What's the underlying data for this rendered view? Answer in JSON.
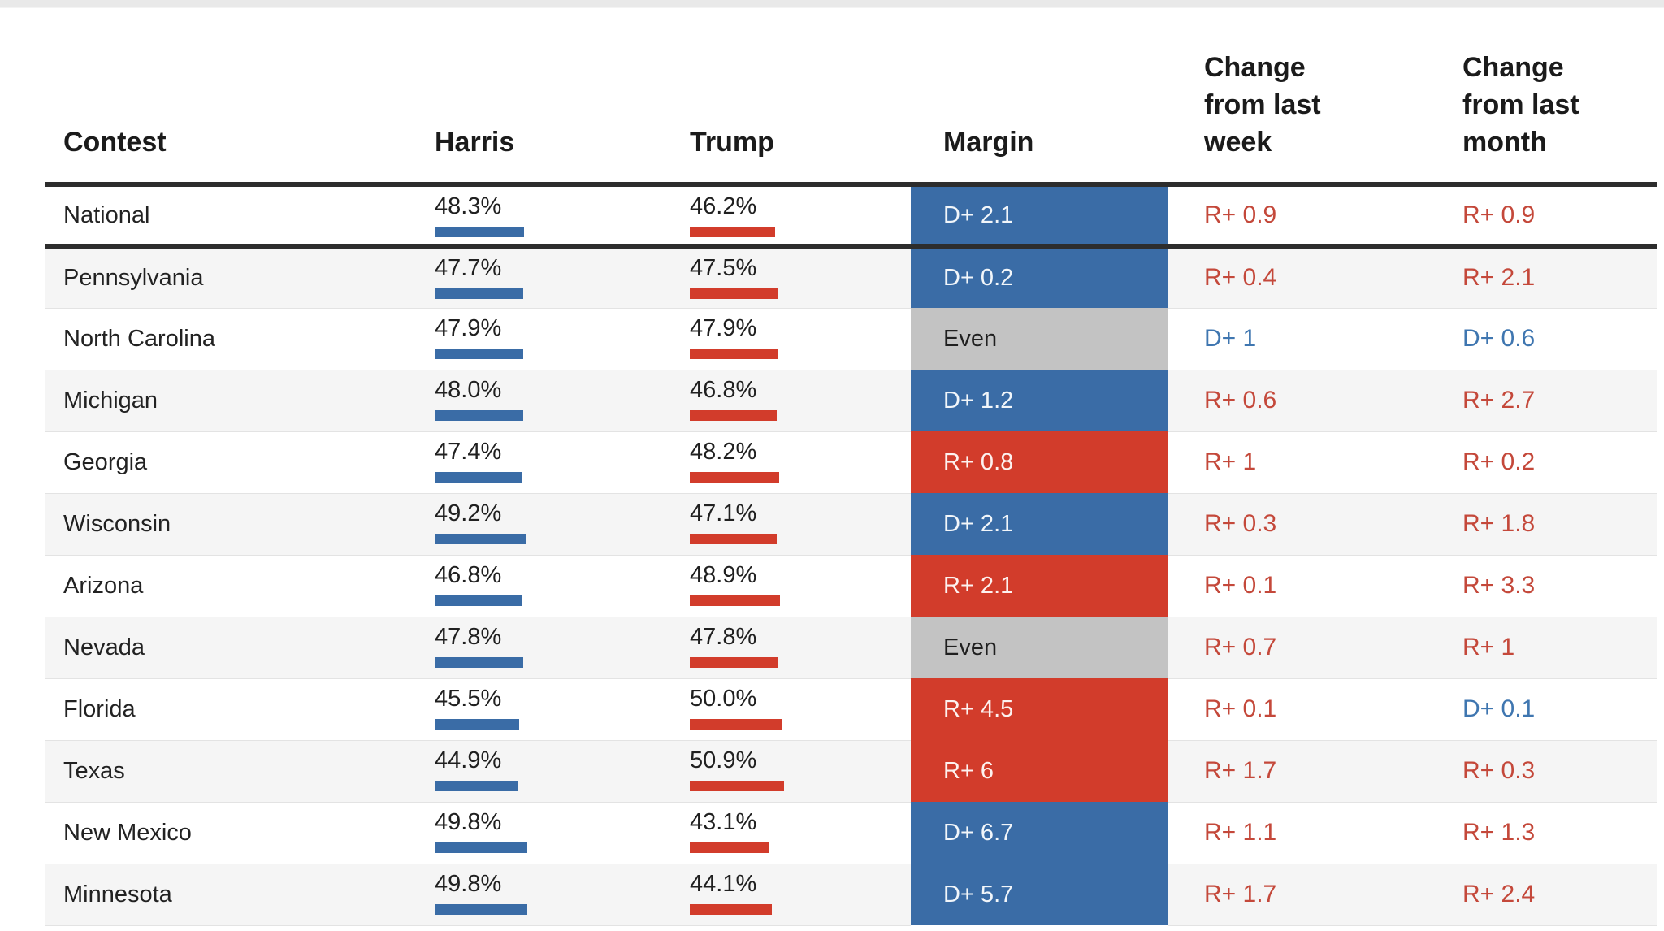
{
  "colors": {
    "dem_blue": "#3a6ca6",
    "rep_red": "#d23c2b",
    "even_gray": "#c3c3c3",
    "dem_change_text": "#3f76b0",
    "rep_change_text": "#c4483a",
    "row_stripe": "#f5f5f5",
    "heavy_rule": "#2d2d2d"
  },
  "chart_data": {
    "type": "table",
    "columns": [
      "Contest",
      "Harris",
      "Trump",
      "Margin",
      "Change from last week",
      "Change from last month"
    ],
    "bar_axis": {
      "unit": "%",
      "scale_min": 0,
      "scale_max": 100
    },
    "header": {
      "contest": "Contest",
      "harris": "Harris",
      "trump": "Trump",
      "margin": "Margin",
      "week": "Change from last week",
      "month": "Change from last month"
    },
    "rows": [
      {
        "contest": "National",
        "harris_pct": "48.3%",
        "harris_val": 48.3,
        "trump_pct": "46.2%",
        "trump_val": 46.2,
        "margin": "D+ 2.1",
        "margin_party": "D",
        "week": "R+ 0.9",
        "week_party": "R",
        "month": "R+ 0.9",
        "month_party": "R"
      },
      {
        "contest": "Pennsylvania",
        "harris_pct": "47.7%",
        "harris_val": 47.7,
        "trump_pct": "47.5%",
        "trump_val": 47.5,
        "margin": "D+ 0.2",
        "margin_party": "D",
        "week": "R+ 0.4",
        "week_party": "R",
        "month": "R+ 2.1",
        "month_party": "R"
      },
      {
        "contest": "North Carolina",
        "harris_pct": "47.9%",
        "harris_val": 47.9,
        "trump_pct": "47.9%",
        "trump_val": 47.9,
        "margin": "Even",
        "margin_party": "E",
        "week": "D+ 1",
        "week_party": "D",
        "month": "D+ 0.6",
        "month_party": "D"
      },
      {
        "contest": "Michigan",
        "harris_pct": "48.0%",
        "harris_val": 48.0,
        "trump_pct": "46.8%",
        "trump_val": 46.8,
        "margin": "D+ 1.2",
        "margin_party": "D",
        "week": "R+ 0.6",
        "week_party": "R",
        "month": "R+ 2.7",
        "month_party": "R"
      },
      {
        "contest": "Georgia",
        "harris_pct": "47.4%",
        "harris_val": 47.4,
        "trump_pct": "48.2%",
        "trump_val": 48.2,
        "margin": "R+ 0.8",
        "margin_party": "R",
        "week": "R+ 1",
        "week_party": "R",
        "month": "R+ 0.2",
        "month_party": "R"
      },
      {
        "contest": "Wisconsin",
        "harris_pct": "49.2%",
        "harris_val": 49.2,
        "trump_pct": "47.1%",
        "trump_val": 47.1,
        "margin": "D+ 2.1",
        "margin_party": "D",
        "week": "R+ 0.3",
        "week_party": "R",
        "month": "R+ 1.8",
        "month_party": "R"
      },
      {
        "contest": "Arizona",
        "harris_pct": "46.8%",
        "harris_val": 46.8,
        "trump_pct": "48.9%",
        "trump_val": 48.9,
        "margin": "R+ 2.1",
        "margin_party": "R",
        "week": "R+ 0.1",
        "week_party": "R",
        "month": "R+ 3.3",
        "month_party": "R"
      },
      {
        "contest": "Nevada",
        "harris_pct": "47.8%",
        "harris_val": 47.8,
        "trump_pct": "47.8%",
        "trump_val": 47.8,
        "margin": "Even",
        "margin_party": "E",
        "week": "R+ 0.7",
        "week_party": "R",
        "month": "R+ 1",
        "month_party": "R"
      },
      {
        "contest": "Florida",
        "harris_pct": "45.5%",
        "harris_val": 45.5,
        "trump_pct": "50.0%",
        "trump_val": 50.0,
        "margin": "R+ 4.5",
        "margin_party": "R",
        "week": "R+ 0.1",
        "week_party": "R",
        "month": "D+ 0.1",
        "month_party": "D"
      },
      {
        "contest": "Texas",
        "harris_pct": "44.9%",
        "harris_val": 44.9,
        "trump_pct": "50.9%",
        "trump_val": 50.9,
        "margin": "R+ 6",
        "margin_party": "R",
        "week": "R+ 1.7",
        "week_party": "R",
        "month": "R+ 0.3",
        "month_party": "R"
      },
      {
        "contest": "New Mexico",
        "harris_pct": "49.8%",
        "harris_val": 49.8,
        "trump_pct": "43.1%",
        "trump_val": 43.1,
        "margin": "D+ 6.7",
        "margin_party": "D",
        "week": "R+ 1.1",
        "week_party": "R",
        "month": "R+ 1.3",
        "month_party": "R"
      },
      {
        "contest": "Minnesota",
        "harris_pct": "49.8%",
        "harris_val": 49.8,
        "trump_pct": "44.1%",
        "trump_val": 44.1,
        "margin": "D+ 5.7",
        "margin_party": "D",
        "week": "R+ 1.7",
        "week_party": "R",
        "month": "R+ 2.4",
        "month_party": "R"
      }
    ]
  }
}
